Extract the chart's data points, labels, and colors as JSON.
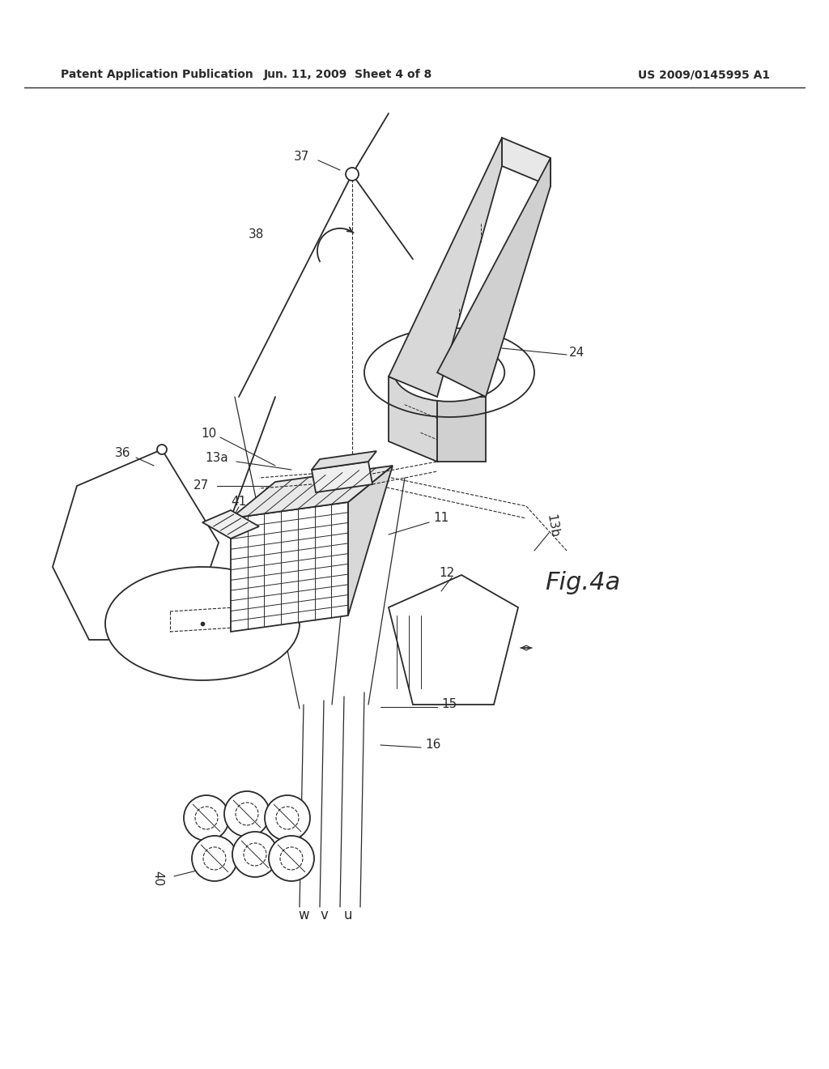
{
  "background_color": "#ffffff",
  "header_left": "Patent Application Publication",
  "header_mid": "Jun. 11, 2009  Sheet 4 of 8",
  "header_right": "US 2009/0145995 A1",
  "figure_label": "Fig.4a",
  "line_color": "#2a2a2a",
  "text_color": "#2a2a2a"
}
